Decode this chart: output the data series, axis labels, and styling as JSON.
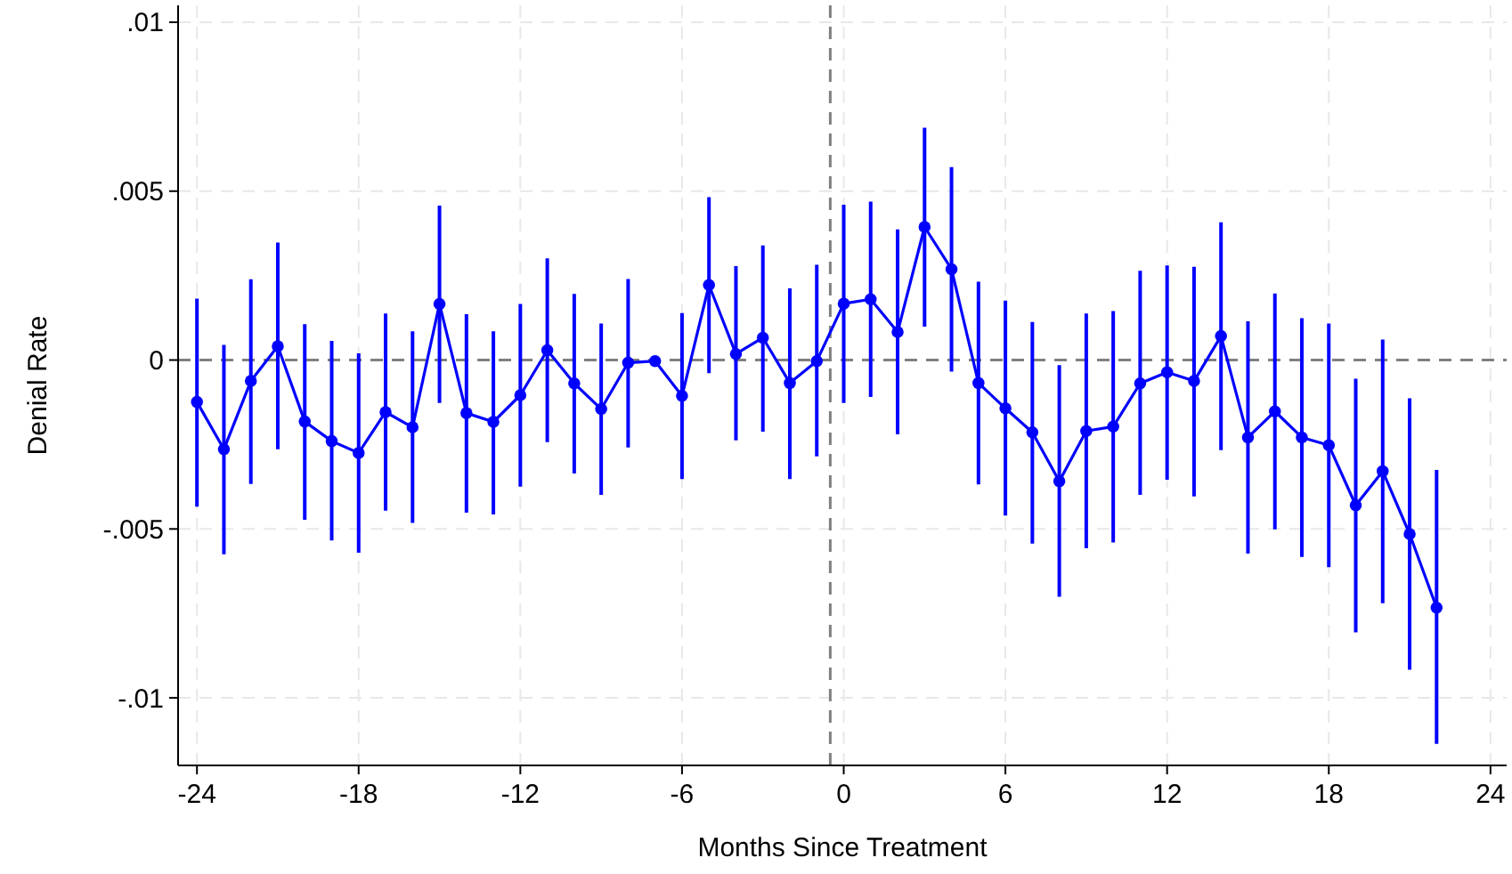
{
  "chart_data": {
    "type": "line",
    "xlabel": "Months Since Treatment",
    "ylabel": "Denial Rate",
    "x": [
      -24,
      -23,
      -22,
      -21,
      -20,
      -19,
      -18,
      -17,
      -16,
      -15,
      -14,
      -13,
      -12,
      -11,
      -10,
      -9,
      -8,
      -7,
      -6,
      -5,
      -4,
      -3,
      -2,
      -1,
      0,
      1,
      2,
      3,
      4,
      5,
      6,
      7,
      8,
      9,
      10,
      11,
      12,
      13,
      14,
      15,
      16,
      17,
      18,
      19,
      20,
      21,
      22
    ],
    "series": [
      {
        "color": "#0000ff",
        "values": [
          -0.00124,
          -0.00264,
          -0.00062,
          0.00041,
          -0.00182,
          -0.0024,
          -0.00275,
          -0.00154,
          -0.00199,
          0.00166,
          -0.00157,
          -0.00183,
          -0.00104,
          0.00029,
          -0.00069,
          -0.00145,
          -8e-05,
          -3e-05,
          -0.00106,
          0.00222,
          0.00018,
          0.00066,
          -0.00068,
          -3e-05,
          0.00167,
          0.0018,
          0.00083,
          0.00394,
          0.00269,
          -0.00068,
          -0.00143,
          -0.00214,
          -0.00359,
          -0.0021,
          -0.00197,
          -0.00069,
          -0.00036,
          -0.00062,
          0.00071,
          -0.00229,
          -0.00152,
          -0.00229,
          -0.00252,
          -0.0043,
          -0.00329,
          -0.00515,
          -0.00733
        ],
        "errors": [
          [
            -0.00434,
            0.00182
          ],
          [
            -0.00575,
            0.00045
          ],
          [
            -0.00367,
            0.00239
          ],
          [
            -0.00264,
            0.00348
          ],
          [
            -0.00473,
            0.00106
          ],
          [
            -0.00534,
            0.00057
          ],
          [
            -0.0057,
            0.0002
          ],
          [
            -0.00446,
            0.00138
          ],
          [
            -0.00482,
            0.00085
          ],
          [
            -0.00127,
            0.00457
          ],
          [
            -0.00452,
            0.00136
          ],
          [
            -0.00457,
            0.00085
          ],
          [
            -0.00375,
            0.00166
          ],
          [
            -0.00243,
            0.00301
          ],
          [
            -0.00336,
            0.00196
          ],
          [
            -0.00399,
            0.00108
          ],
          [
            -0.00259,
            0.0024
          ],
          null,
          [
            -0.00352,
            0.00139
          ],
          [
            -0.00039,
            0.00482
          ],
          [
            -0.00238,
            0.00278
          ],
          [
            -0.00212,
            0.00339
          ],
          [
            -0.00352,
            0.00212
          ],
          [
            -0.00285,
            0.00282
          ],
          [
            -0.00127,
            0.0046
          ],
          [
            -0.00109,
            0.00469
          ],
          [
            -0.0022,
            0.00387
          ],
          [
            0.00099,
            0.00688
          ],
          [
            -0.00034,
            0.00571
          ],
          [
            -0.00368,
            0.00232
          ],
          [
            -0.0046,
            0.00176
          ],
          [
            -0.00543,
            0.00113
          ],
          [
            -0.00701,
            -0.00015
          ],
          [
            -0.00557,
            0.00138
          ],
          [
            -0.0054,
            0.00145
          ],
          [
            -0.00399,
            0.00264
          ],
          [
            -0.00354,
            0.0028
          ],
          [
            -0.00404,
            0.00276
          ],
          [
            -0.00267,
            0.00408
          ],
          [
            -0.00573,
            0.00115
          ],
          [
            -0.00501,
            0.00197
          ],
          [
            -0.00583,
            0.00124
          ],
          [
            -0.00613,
            0.00108
          ],
          [
            -0.00806,
            -0.00055
          ],
          [
            -0.0072,
            0.00061
          ],
          [
            -0.00917,
            -0.00113
          ],
          [
            -0.01136,
            -0.00325
          ]
        ]
      }
    ],
    "xlim": [
      -24.7,
      24.6
    ],
    "xticks": [
      -24,
      -18,
      -12,
      -6,
      0,
      6,
      12,
      18,
      24
    ],
    "ylim": [
      -0.012,
      0.0105
    ],
    "yticks": [
      {
        "value": 0.01,
        "label": ".01"
      },
      {
        "value": 0.005,
        "label": ".005"
      },
      0,
      {
        "value": -0.005,
        "label": "-.005"
      },
      {
        "value": -0.01,
        "label": "-.01"
      }
    ],
    "ref_lines": [
      {
        "axis": "y",
        "value": 0,
        "color": "#808080",
        "line_style": "dashed"
      },
      {
        "axis": "x",
        "value": -0.5,
        "color": "#808080",
        "line_style": "dashed"
      }
    ],
    "grid": true,
    "marker": "circle",
    "line_style": "solid"
  }
}
